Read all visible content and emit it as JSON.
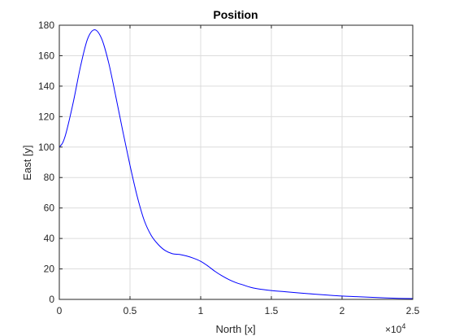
{
  "chart_data": {
    "type": "line",
    "title": "Position",
    "xlabel": "North [x]",
    "ylabel": "East [y]",
    "x_multiplier_base": "×10",
    "x_multiplier_exp": "4",
    "xlim": [
      0,
      25000
    ],
    "ylim": [
      0,
      180
    ],
    "grid": true,
    "x_ticks": [
      0,
      5000,
      10000,
      15000,
      20000,
      25000
    ],
    "x_tick_labels": [
      "0",
      "0.5",
      "1",
      "1.5",
      "2",
      "2.5"
    ],
    "y_ticks": [
      0,
      20,
      40,
      60,
      80,
      100,
      120,
      140,
      160,
      180
    ],
    "y_tick_labels": [
      "0",
      "20",
      "40",
      "60",
      "80",
      "100",
      "120",
      "140",
      "160",
      "180"
    ],
    "series": [
      {
        "color": "#0000ff",
        "x": [
          0,
          250,
          500,
          1000,
          1500,
          2000,
          2500,
          3000,
          3500,
          4000,
          4500,
          5000,
          5500,
          6000,
          6500,
          7000,
          7500,
          8000,
          8500,
          9000,
          9500,
          10000,
          10500,
          11000,
          11500,
          12000,
          12500,
          13000,
          13500,
          14000,
          15000,
          16000,
          17000,
          18000,
          19000,
          20000,
          21000,
          22000,
          23000,
          24000,
          25000
        ],
        "y": [
          100,
          103,
          110,
          130,
          153,
          171,
          177,
          171,
          155,
          133,
          110,
          88,
          68,
          52,
          42,
          36,
          32,
          30,
          29.5,
          28.5,
          27,
          25,
          22,
          18.5,
          15.5,
          13,
          11,
          9.5,
          8,
          7,
          5.8,
          5,
          4.2,
          3.5,
          2.8,
          2.2,
          1.8,
          1.4,
          1,
          0.7,
          0.5
        ]
      }
    ]
  }
}
